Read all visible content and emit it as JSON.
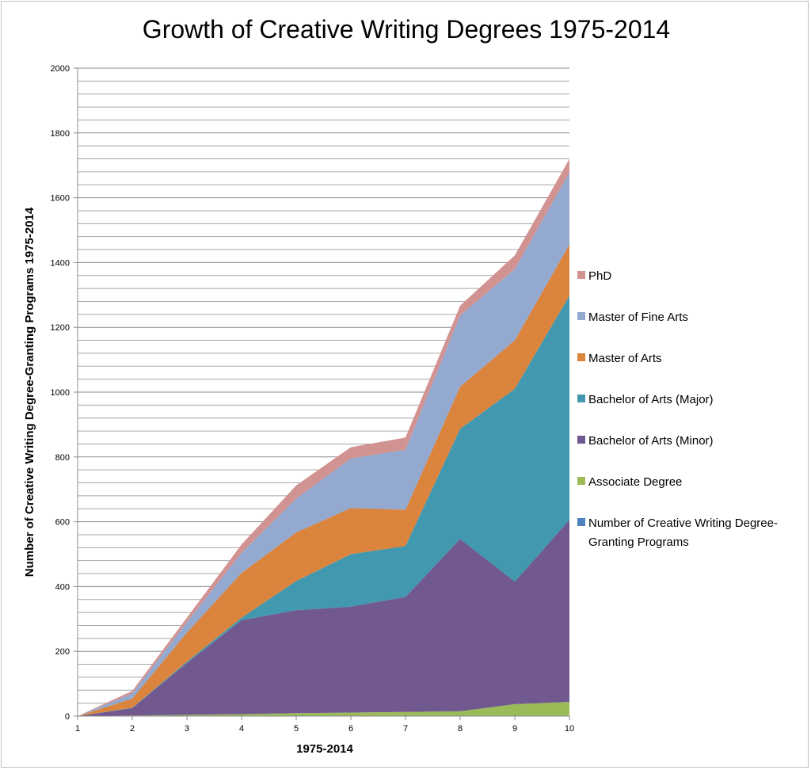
{
  "chart_data": {
    "type": "area",
    "stacked": true,
    "title": "Growth of Creative Writing Degrees 1975-2014",
    "xlabel": "1975-2014",
    "ylabel": "Number of Creative Writing Degree-Granting Programs 1975-2014",
    "x": [
      1,
      2,
      3,
      4,
      5,
      6,
      7,
      8,
      9,
      10
    ],
    "ylim": [
      0,
      2000
    ],
    "y_major_ticks": [
      0,
      200,
      400,
      600,
      800,
      1000,
      1200,
      1400,
      1600,
      1800,
      2000
    ],
    "y_minor_step": 40,
    "grid": true,
    "legend_position": "right",
    "series": [
      {
        "name": "Number of Creative Writing Degree-Granting Programs",
        "color": "#4F81BD",
        "values": [
          0,
          0,
          0,
          0,
          0,
          0,
          0,
          0,
          0,
          0
        ]
      },
      {
        "name": "Associate Degree",
        "color": "#9BBB59",
        "values": [
          0,
          2,
          4,
          6,
          9,
          11,
          13,
          15,
          37,
          44
        ]
      },
      {
        "name": "Bachelor of Arts (Minor)",
        "color": "#71588F",
        "values": [
          0,
          23,
          160,
          290,
          318,
          327,
          355,
          532,
          378,
          562
        ]
      },
      {
        "name": "Bachelor of Arts (Major)",
        "color": "#4198AF",
        "values": [
          0,
          1,
          4,
          8,
          90,
          162,
          157,
          340,
          595,
          692
        ]
      },
      {
        "name": "Master of Arts",
        "color": "#DB843D",
        "values": [
          0,
          28,
          90,
          138,
          150,
          142,
          112,
          130,
          150,
          158
        ]
      },
      {
        "name": "Master of Fine Arts",
        "color": "#93A9CF",
        "values": [
          0,
          16,
          32,
          62,
          105,
          153,
          185,
          220,
          220,
          222
        ]
      },
      {
        "name": "PhD",
        "color": "#D19392",
        "values": [
          0,
          8,
          14,
          26,
          40,
          35,
          38,
          30,
          42,
          42
        ]
      }
    ]
  }
}
